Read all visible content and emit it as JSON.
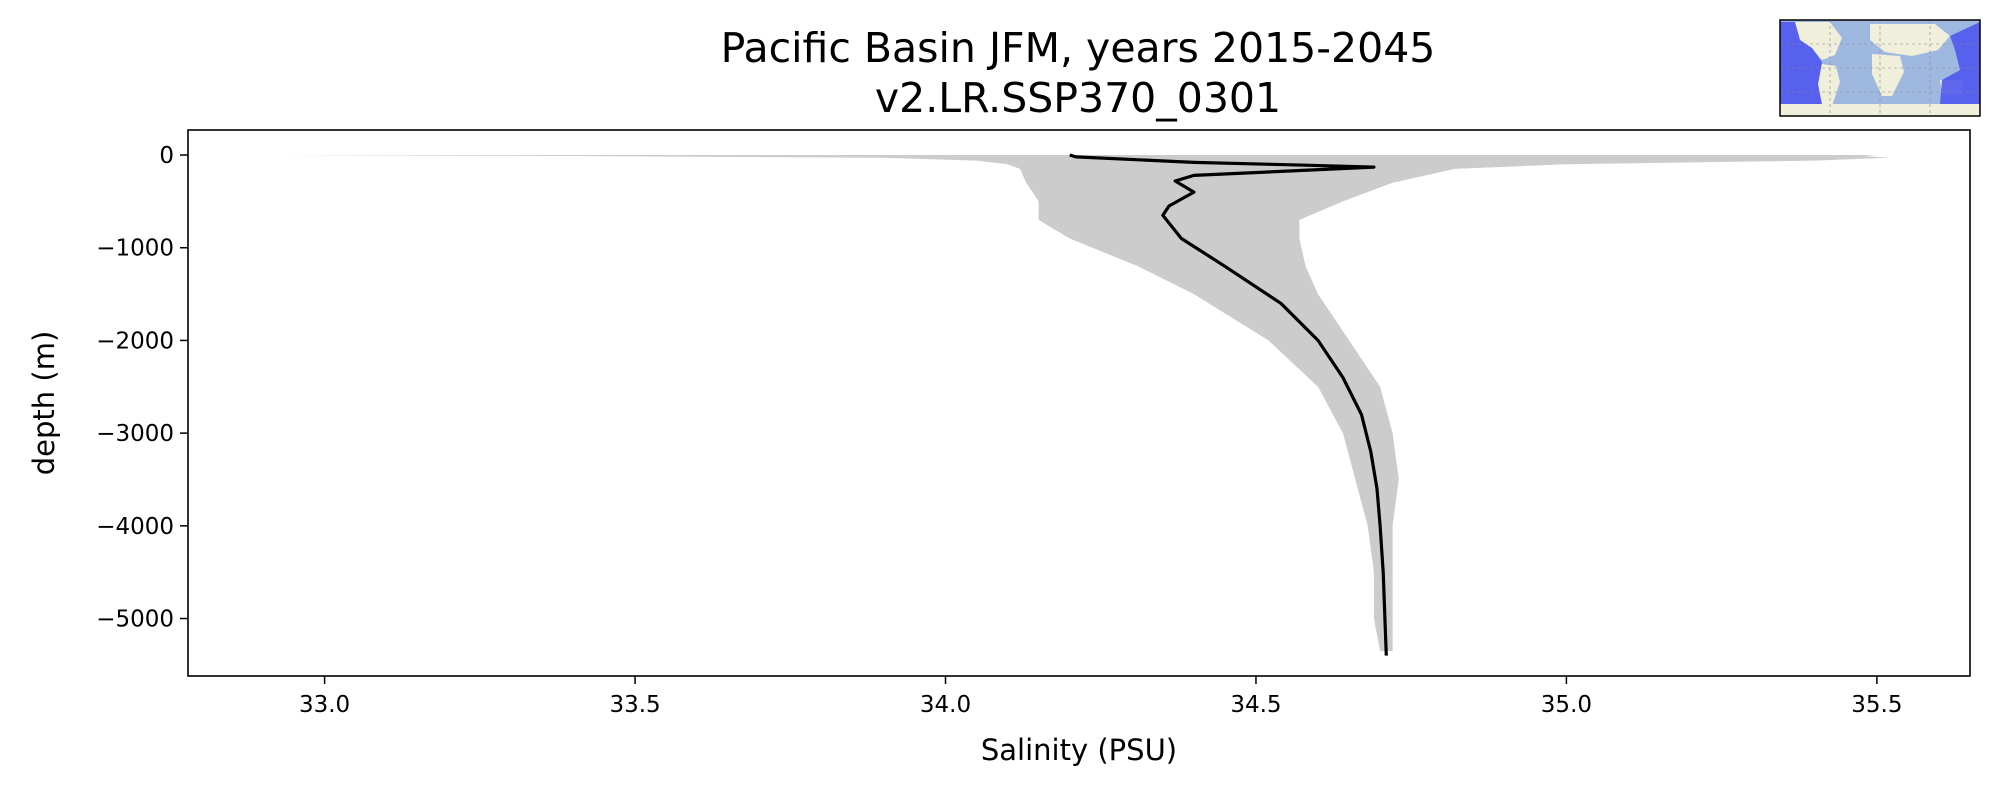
{
  "chart_data": {
    "type": "line",
    "title": "Pacific Basin JFM, years 2015-2045",
    "subtitle": "v2.LR.SSP370_0301",
    "xlabel": "Salinity (PSU)",
    "ylabel": "depth (m)",
    "xlim": [
      32.78,
      35.65
    ],
    "ylim": [
      -5620,
      270
    ],
    "xticks": [
      33.0,
      33.5,
      34.0,
      34.5,
      35.0,
      35.5
    ],
    "xtick_labels": [
      "33.0",
      "33.5",
      "34.0",
      "34.5",
      "35.0",
      "35.5"
    ],
    "yticks": [
      0,
      -1000,
      -2000,
      -3000,
      -4000,
      -5000
    ],
    "ytick_labels": [
      "0",
      "−1000",
      "−2000",
      "−3000",
      "−4000",
      "−5000"
    ],
    "grid": false,
    "series": [
      {
        "kind": "line",
        "color": "#000000",
        "x": [
          34.2,
          34.21,
          34.4,
          34.58,
          34.69,
          34.4,
          34.37,
          34.4,
          34.36,
          34.35,
          34.38,
          34.45,
          34.54,
          34.6,
          34.64,
          34.67,
          34.685,
          34.695,
          34.7,
          34.705,
          34.71
        ],
        "y": [
          0,
          -20,
          -80,
          -110,
          -130,
          -220,
          -280,
          -400,
          -550,
          -650,
          -900,
          -1200,
          -1600,
          -2000,
          -2400,
          -2800,
          -3200,
          -3600,
          -4000,
          -4500,
          -5400
        ]
      },
      {
        "kind": "band",
        "color": "#cccccc",
        "depth": [
          0,
          -10,
          -30,
          -60,
          -100,
          -150,
          -300,
          -500,
          -700,
          -900,
          -1200,
          -1500,
          -2000,
          -2500,
          -3000,
          -3500,
          -4000,
          -4500,
          -5000,
          -5350
        ],
        "lower": [
          32.92,
          33.4,
          33.9,
          34.05,
          34.1,
          34.12,
          34.13,
          34.15,
          34.15,
          34.2,
          34.31,
          34.4,
          34.52,
          34.6,
          34.64,
          34.66,
          34.68,
          34.69,
          34.69,
          34.7
        ],
        "upper": [
          35.5,
          35.48,
          35.52,
          35.4,
          35.0,
          34.82,
          34.72,
          34.64,
          34.57,
          34.57,
          34.58,
          34.6,
          34.65,
          34.7,
          34.72,
          34.73,
          34.72,
          34.72,
          34.72,
          34.72
        ]
      }
    ]
  },
  "inset_map": {
    "ocean_color": "#9fb8e0",
    "land_color": "#efefdc",
    "highlight_color": "#5058f0"
  }
}
